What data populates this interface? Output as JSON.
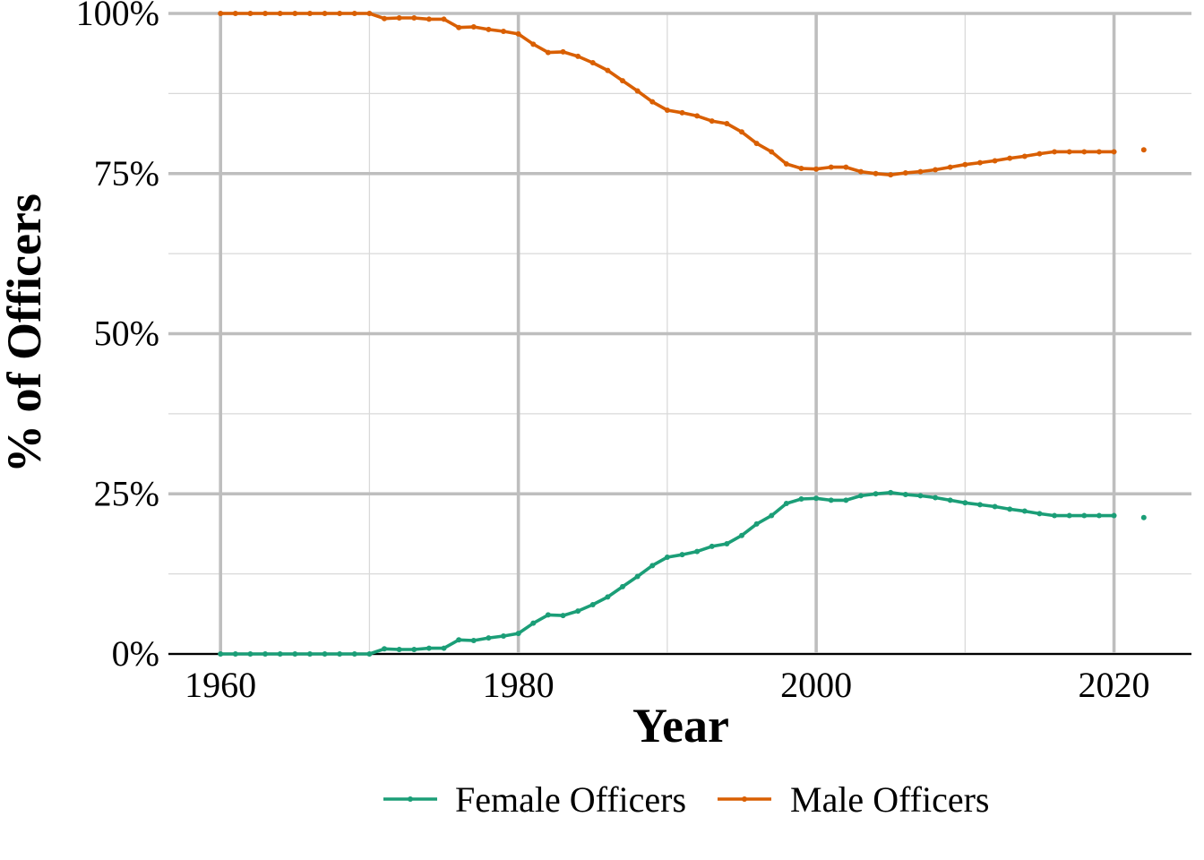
{
  "chart_data": {
    "type": "line",
    "xlabel": "Year",
    "ylabel": "% of Officers",
    "xlim": [
      1956.5,
      2025.2
    ],
    "ylim": [
      0,
      100
    ],
    "x_ticks": [
      1960,
      1980,
      2000,
      2020
    ],
    "x_tick_labels": [
      "1960",
      "1980",
      "2000",
      "2020"
    ],
    "x_minor_ticks": [
      1970,
      1990,
      2010
    ],
    "y_ticks": [
      0,
      25,
      50,
      75,
      100
    ],
    "y_tick_labels": [
      "0%",
      "25%",
      "50%",
      "75%",
      "100%"
    ],
    "y_minor_ticks": [
      12.5,
      37.5,
      62.5,
      87.5
    ],
    "grid": true,
    "legend_position": "bottom",
    "series": [
      {
        "name": "Female Officers",
        "color": "#1b9e77",
        "x": [
          1960,
          1961,
          1962,
          1963,
          1964,
          1965,
          1966,
          1967,
          1968,
          1969,
          1970,
          1971,
          1972,
          1973,
          1974,
          1975,
          1976,
          1977,
          1978,
          1979,
          1980,
          1981,
          1982,
          1983,
          1984,
          1985,
          1986,
          1987,
          1988,
          1989,
          1990,
          1991,
          1992,
          1993,
          1994,
          1995,
          1996,
          1997,
          1998,
          1999,
          2000,
          2001,
          2002,
          2003,
          2004,
          2005,
          2006,
          2007,
          2008,
          2009,
          2010,
          2011,
          2012,
          2013,
          2014,
          2015,
          2016,
          2017,
          2018,
          2019,
          2020,
          2022
        ],
        "values": [
          0,
          0,
          0,
          0,
          0,
          0,
          0,
          0,
          0,
          0,
          0,
          0.8,
          0.7,
          0.7,
          0.9,
          0.9,
          2.2,
          2.1,
          2.5,
          2.8,
          3.2,
          4.8,
          6.1,
          6.0,
          6.7,
          7.7,
          8.9,
          10.5,
          12.1,
          13.8,
          15.1,
          15.5,
          16.0,
          16.8,
          17.2,
          18.5,
          20.3,
          21.6,
          23.5,
          24.2,
          24.3,
          24.0,
          24.0,
          24.7,
          25.0,
          25.2,
          24.9,
          24.7,
          24.4,
          24.0,
          23.6,
          23.3,
          23.0,
          22.6,
          22.3,
          21.9,
          21.6,
          21.6,
          21.6,
          21.6,
          21.6,
          21.3
        ]
      },
      {
        "name": "Male Officers",
        "color": "#d95f02",
        "x": [
          1960,
          1961,
          1962,
          1963,
          1964,
          1965,
          1966,
          1967,
          1968,
          1969,
          1970,
          1971,
          1972,
          1973,
          1974,
          1975,
          1976,
          1977,
          1978,
          1979,
          1980,
          1981,
          1982,
          1983,
          1984,
          1985,
          1986,
          1987,
          1988,
          1989,
          1990,
          1991,
          1992,
          1993,
          1994,
          1995,
          1996,
          1997,
          1998,
          1999,
          2000,
          2001,
          2002,
          2003,
          2004,
          2005,
          2006,
          2007,
          2008,
          2009,
          2010,
          2011,
          2012,
          2013,
          2014,
          2015,
          2016,
          2017,
          2018,
          2019,
          2020,
          2022
        ],
        "values": [
          100,
          100,
          100,
          100,
          100,
          100,
          100,
          100,
          100,
          100,
          100,
          99.2,
          99.3,
          99.3,
          99.1,
          99.1,
          97.8,
          97.9,
          97.5,
          97.2,
          96.8,
          95.2,
          93.9,
          94.0,
          93.3,
          92.3,
          91.1,
          89.5,
          87.9,
          86.2,
          84.9,
          84.5,
          84.0,
          83.2,
          82.8,
          81.5,
          79.7,
          78.4,
          76.5,
          75.8,
          75.7,
          76.0,
          76.0,
          75.3,
          75.0,
          74.8,
          75.1,
          75.3,
          75.6,
          76.0,
          76.4,
          76.7,
          77.0,
          77.4,
          77.7,
          78.1,
          78.4,
          78.4,
          78.4,
          78.4,
          78.4,
          78.7
        ]
      }
    ]
  }
}
